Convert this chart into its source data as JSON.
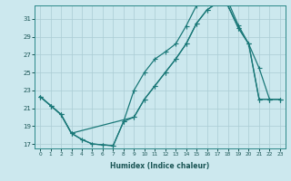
{
  "xlabel": "Humidex (Indice chaleur)",
  "bg_color": "#cce8ee",
  "line_color": "#1a7878",
  "grid_color": "#aaccd4",
  "xlim": [
    -0.5,
    23.5
  ],
  "ylim": [
    16.5,
    32.5
  ],
  "xticks": [
    0,
    1,
    2,
    3,
    4,
    5,
    6,
    7,
    8,
    9,
    10,
    11,
    12,
    13,
    14,
    15,
    16,
    17,
    18,
    19,
    20,
    21,
    22,
    23
  ],
  "yticks": [
    17,
    19,
    21,
    23,
    25,
    27,
    29,
    31
  ],
  "line1_x": [
    0,
    1,
    2,
    3,
    4,
    5,
    6,
    7,
    8,
    9,
    10,
    11,
    12,
    13,
    14,
    15,
    16,
    17,
    18,
    19,
    20,
    21,
    22,
    23
  ],
  "line1_y": [
    22.3,
    21.3,
    20.3,
    18.2,
    17.5,
    17.0,
    16.9,
    16.8,
    19.5,
    23.0,
    25.0,
    26.5,
    27.3,
    28.2,
    30.2,
    32.5,
    33.0,
    33.0,
    33.0,
    30.3,
    28.2,
    22.0,
    22.0,
    22.0
  ],
  "line2_x": [
    0,
    1,
    2,
    3,
    4,
    5,
    6,
    7,
    8,
    9,
    10,
    11,
    12,
    13,
    14,
    15,
    16,
    17,
    18,
    19,
    20,
    21,
    22,
    23
  ],
  "line2_y": [
    22.3,
    21.3,
    20.3,
    18.2,
    17.5,
    17.0,
    16.9,
    16.8,
    19.5,
    20.0,
    22.0,
    23.5,
    25.0,
    26.5,
    28.2,
    30.5,
    32.0,
    32.8,
    32.5,
    30.0,
    28.2,
    25.5,
    22.0,
    22.0
  ],
  "line3_x": [
    0,
    1,
    2,
    3,
    9,
    10,
    11,
    12,
    13,
    14,
    15,
    16,
    17,
    18,
    19,
    20,
    21,
    22,
    23
  ],
  "line3_y": [
    22.3,
    21.3,
    20.3,
    18.2,
    20.0,
    22.0,
    23.5,
    25.0,
    26.5,
    28.2,
    30.5,
    32.0,
    32.8,
    32.5,
    30.0,
    28.2,
    22.0,
    22.0,
    22.0
  ]
}
